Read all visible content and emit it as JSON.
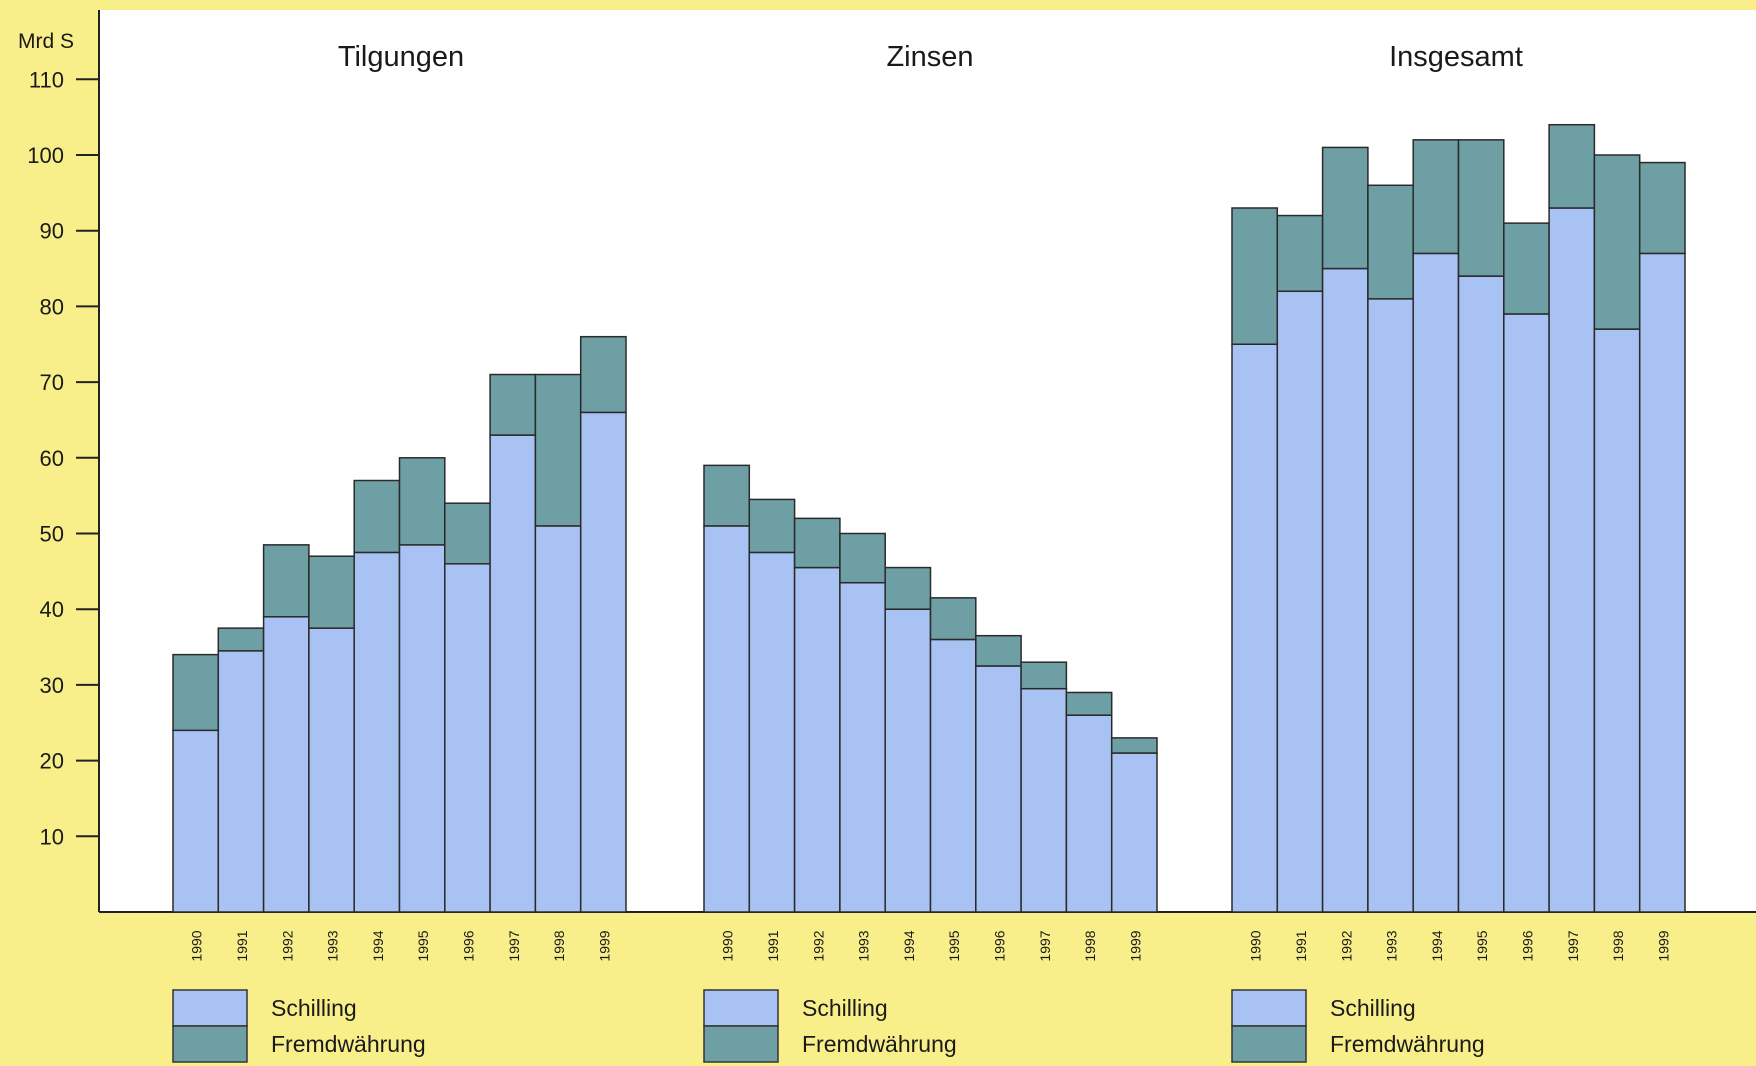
{
  "chart_data": {
    "type": "bar",
    "stacked": true,
    "y_unit_label": "Mrd S",
    "ylim": [
      0,
      110
    ],
    "yticks": [
      10,
      20,
      30,
      40,
      50,
      60,
      70,
      80,
      90,
      100,
      110
    ],
    "years": [
      "1990",
      "1991",
      "1992",
      "1993",
      "1994",
      "1995",
      "1996",
      "1997",
      "1998",
      "1999"
    ],
    "colors": {
      "background": "#f8ef8a",
      "plot_area": "#ffffff",
      "schilling": "#a8c2f4",
      "fremdwaehrung": "#6e9fa4",
      "outline": "#2a2a2a"
    },
    "panels": [
      {
        "title": "Tilgungen",
        "series": [
          {
            "name": "Schilling",
            "values": [
              24,
              34.5,
              39,
              37.5,
              47.5,
              48.5,
              46,
              63,
              51,
              66
            ]
          },
          {
            "name": "Fremdwährung",
            "values": [
              10,
              3,
              9.5,
              9.5,
              9.5,
              11.5,
              8,
              8,
              20,
              10
            ]
          }
        ]
      },
      {
        "title": "Zinsen",
        "series": [
          {
            "name": "Schilling",
            "values": [
              51,
              47.5,
              45.5,
              43.5,
              40,
              36,
              32.5,
              29.5,
              26,
              21
            ]
          },
          {
            "name": "Fremdwährung",
            "values": [
              8,
              7,
              6.5,
              6.5,
              5.5,
              5.5,
              4,
              3.5,
              3,
              2
            ]
          }
        ]
      },
      {
        "title": "Insgesamt",
        "series": [
          {
            "name": "Schilling",
            "values": [
              75,
              82,
              85,
              81,
              87,
              84,
              79,
              93,
              77,
              87
            ]
          },
          {
            "name": "Fremdwährung",
            "values": [
              18,
              10,
              16,
              15,
              15,
              18,
              12,
              11,
              23,
              12
            ]
          }
        ]
      }
    ],
    "legend": [
      {
        "label": "Schilling",
        "color_key": "schilling"
      },
      {
        "label": "Fremdwährung",
        "color_key": "fremdwaehrung"
      }
    ]
  }
}
